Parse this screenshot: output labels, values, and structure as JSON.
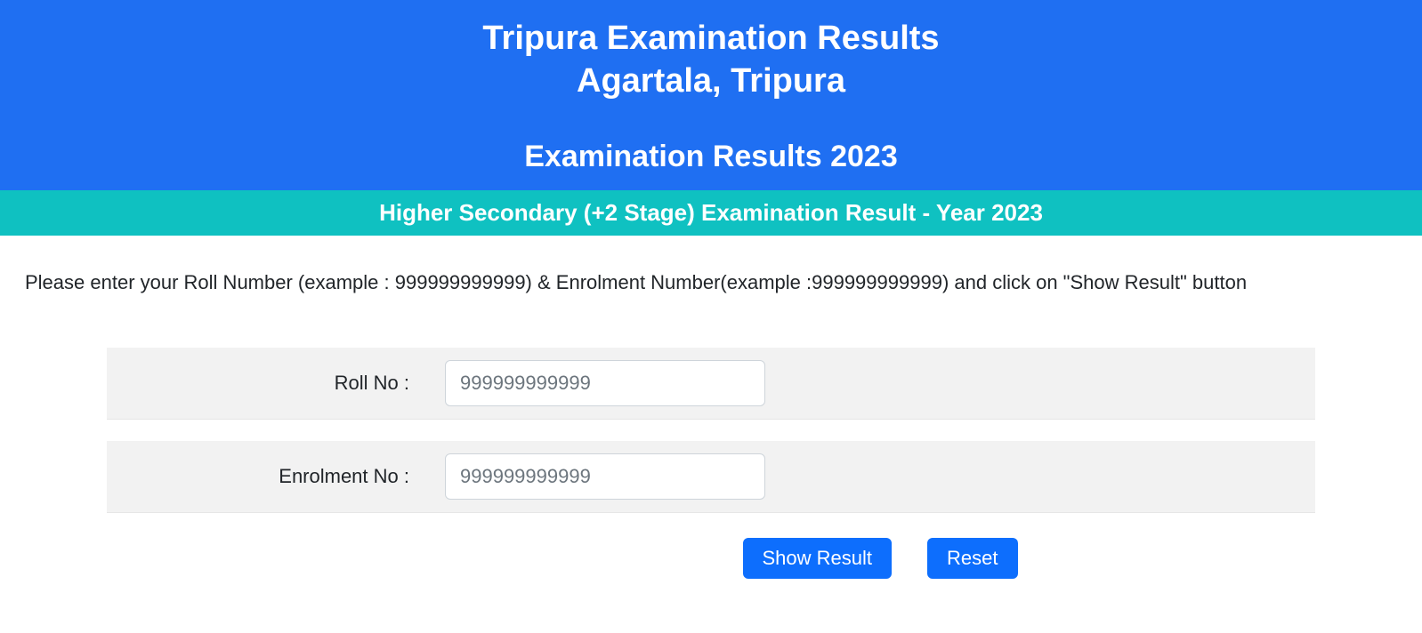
{
  "header": {
    "line1": "Tripura Examination Results",
    "line2": "Agartala, Tripura",
    "subtitle": "Examination Results 2023"
  },
  "subheader": {
    "text": "Higher Secondary (+2 Stage) Examination Result - Year 2023"
  },
  "instruction": {
    "text": "Please enter your Roll Number (example : 999999999999) & Enrolment Number(example :999999999999) and click on \"Show Result\" button"
  },
  "form": {
    "roll": {
      "label": "Roll No :",
      "placeholder": "999999999999",
      "value": ""
    },
    "enrolment": {
      "label": "Enrolment No :",
      "placeholder": "999999999999",
      "value": ""
    }
  },
  "buttons": {
    "show": "Show Result",
    "reset": "Reset"
  },
  "colors": {
    "header_bg": "#1f6ff2",
    "subheader_bg": "#0fc1c1",
    "button_bg": "#0d6efd",
    "row_bg": "#f2f2f2"
  }
}
